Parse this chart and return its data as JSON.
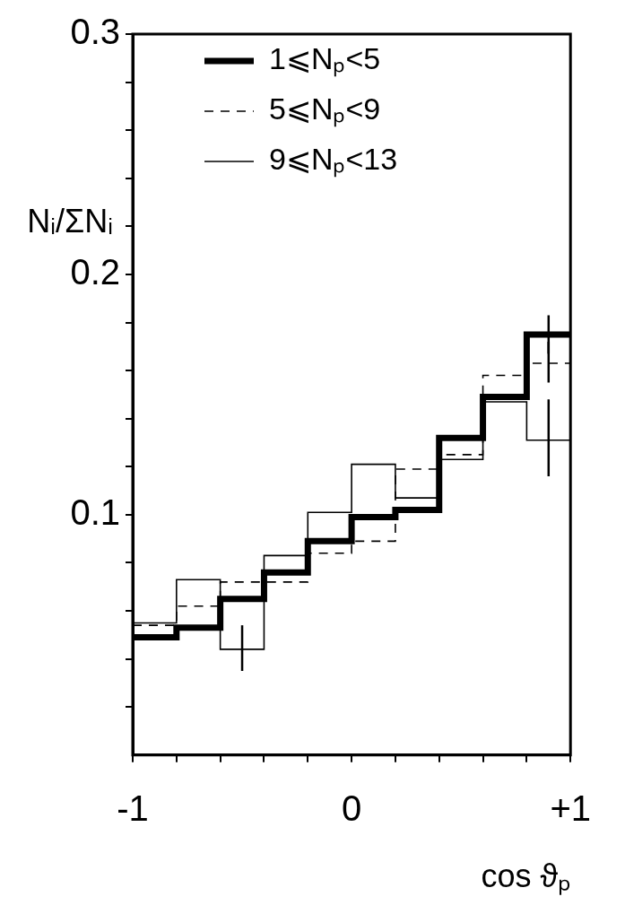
{
  "chart_data": {
    "type": "step",
    "xlabel": "cos ϑₚ",
    "ylabel": "Nᵢ/ΣNᵢ",
    "x": [
      -1,
      -0.9,
      -0.7,
      -0.5,
      -0.3,
      -0.1,
      0.1,
      0.3,
      0.5,
      0.7,
      0.9,
      1
    ],
    "series": [
      {
        "name": "1⩽Nₚ<5",
        "color": "#000000",
        "line_style": "solid",
        "values": [
          0.049,
          0.049,
          0.053,
          0.065,
          0.076,
          0.089,
          0.099,
          0.102,
          0.132,
          0.149,
          0.175,
          0.175
        ],
        "errors": [
          null,
          null,
          null,
          null,
          null,
          null,
          null,
          null,
          null,
          null,
          [
            0.167,
            0.183
          ],
          null
        ]
      },
      {
        "name": "5⩽Nₚ<9",
        "color": "#000000",
        "line_style": "dashed",
        "values": [
          0.054,
          0.054,
          0.062,
          0.072,
          0.072,
          0.084,
          0.089,
          0.119,
          0.125,
          0.158,
          0.163,
          0.163
        ],
        "errors": [
          null,
          null,
          null,
          null,
          null,
          null,
          null,
          null,
          null,
          null,
          [
            0.155,
            0.172
          ],
          null
        ]
      },
      {
        "name": "9⩽Nₚ<13",
        "color": "#000000",
        "line_style": "solid",
        "values": [
          0.055,
          0.055,
          0.073,
          0.044,
          0.083,
          0.101,
          0.121,
          0.107,
          0.123,
          0.147,
          0.131,
          0.131
        ],
        "errors": [
          null,
          null,
          null,
          [
            0.035,
            0.054
          ],
          null,
          null,
          null,
          null,
          null,
          null,
          [
            0.116,
            0.148
          ],
          null
        ]
      }
    ],
    "xlim": [
      -1,
      1
    ],
    "xticks": [
      -1,
      {
        "value": -0.8,
        "label": null
      },
      {
        "value": -0.6,
        "label": null
      },
      {
        "value": -0.4,
        "label": null
      },
      {
        "value": -0.2,
        "label": null
      },
      0,
      {
        "value": 0.2,
        "label": null
      },
      {
        "value": 0.4,
        "label": null
      },
      {
        "value": 0.6,
        "label": null
      },
      {
        "value": 0.8,
        "label": null
      },
      {
        "value": 1,
        "label": "+1"
      }
    ],
    "ylim": [
      0,
      0.3
    ],
    "yticks": [
      {
        "value": 0.02,
        "label": null
      },
      {
        "value": 0.04,
        "label": null
      },
      {
        "value": 0.06,
        "label": null
      },
      {
        "value": 0.08,
        "label": null
      },
      0.1,
      {
        "value": 0.12,
        "label": null
      },
      {
        "value": 0.14,
        "label": null
      },
      {
        "value": 0.16,
        "label": null
      },
      {
        "value": 0.18,
        "label": null
      },
      0.2,
      {
        "value": 0.22,
        "label": null
      },
      {
        "value": 0.24,
        "label": null
      },
      {
        "value": 0.26,
        "label": null
      },
      {
        "value": 0.28,
        "label": null
      },
      0.3
    ],
    "grid": false,
    "legend": "top left"
  }
}
